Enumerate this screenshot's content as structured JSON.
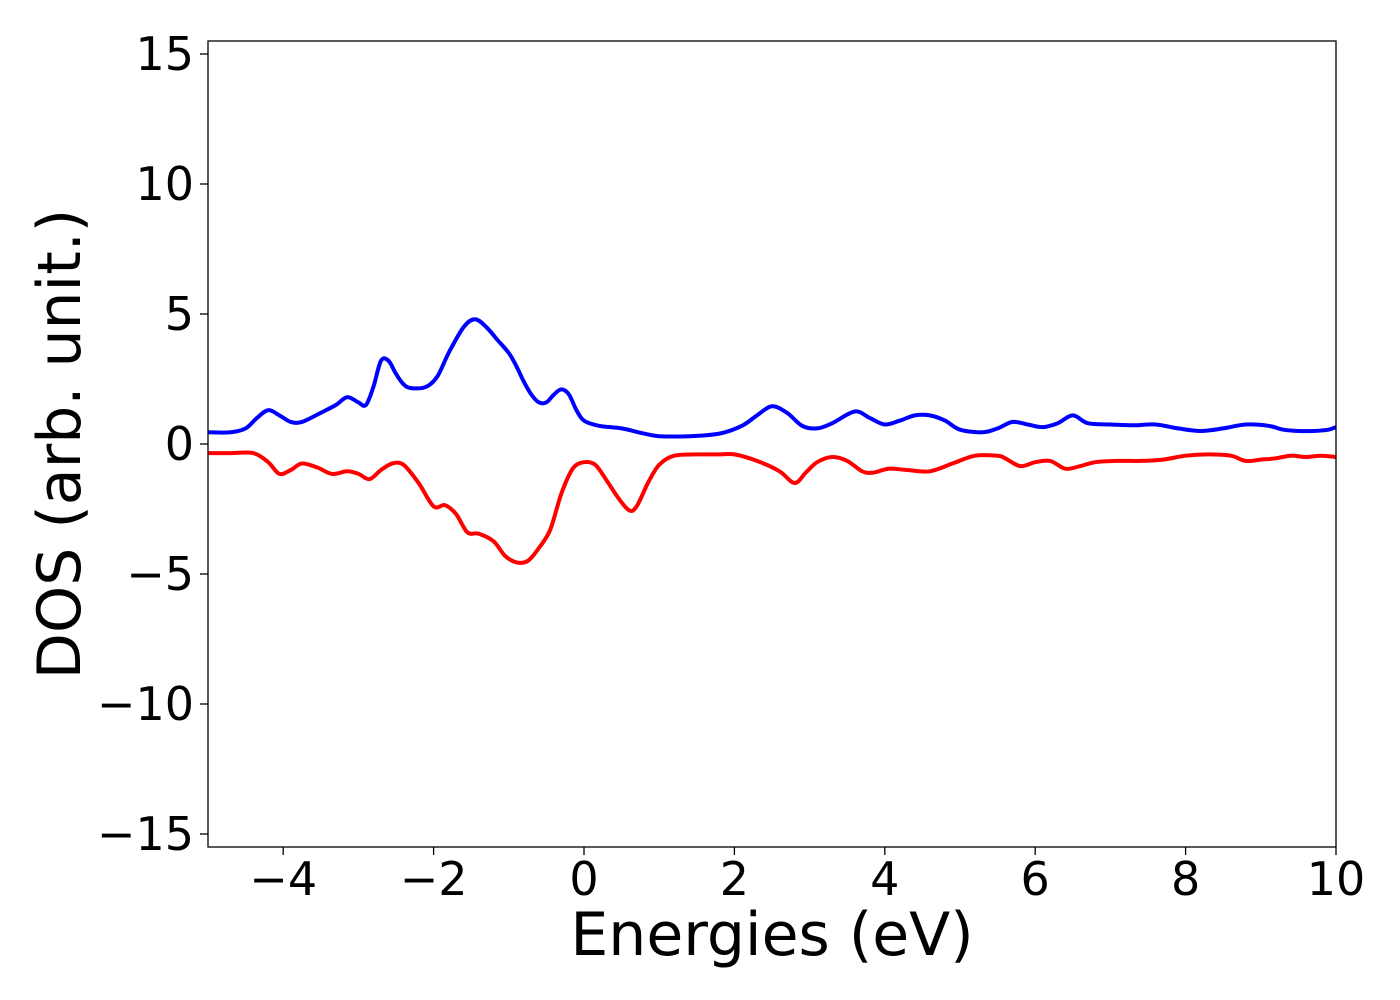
{
  "chart_data": {
    "type": "line",
    "xlabel": "Energies (eV)",
    "ylabel": "DOS (arb. unit.)",
    "xlim": [
      -5,
      10
    ],
    "ylim": [
      -15.5,
      15.5
    ],
    "xticks": [
      -4,
      -2,
      0,
      2,
      4,
      6,
      8,
      10
    ],
    "xtick_labels": [
      "−4",
      "−2",
      "0",
      "2",
      "4",
      "6",
      "8",
      "10"
    ],
    "yticks": [
      -15,
      -10,
      -5,
      0,
      5,
      10,
      15
    ],
    "ytick_labels": [
      "−15",
      "−10",
      "−5",
      "0",
      "5",
      "10",
      "15"
    ],
    "grid": false,
    "legend": "none",
    "series": [
      {
        "color": "#0000ff",
        "x": [
          -5.0,
          -4.7,
          -4.5,
          -4.35,
          -4.2,
          -4.05,
          -3.9,
          -3.75,
          -3.5,
          -3.3,
          -3.15,
          -3.0,
          -2.9,
          -2.8,
          -2.7,
          -2.6,
          -2.5,
          -2.4,
          -2.3,
          -2.1,
          -1.95,
          -1.8,
          -1.6,
          -1.45,
          -1.3,
          -1.15,
          -1.0,
          -0.9,
          -0.8,
          -0.7,
          -0.6,
          -0.5,
          -0.4,
          -0.3,
          -0.2,
          -0.1,
          0.0,
          0.2,
          0.5,
          0.8,
          1.0,
          1.4,
          1.8,
          2.1,
          2.3,
          2.5,
          2.7,
          2.9,
          3.1,
          3.3,
          3.6,
          3.8,
          4.0,
          4.2,
          4.4,
          4.6,
          4.8,
          5.0,
          5.3,
          5.5,
          5.7,
          5.9,
          6.1,
          6.3,
          6.5,
          6.7,
          7.0,
          7.3,
          7.6,
          7.9,
          8.2,
          8.5,
          8.8,
          9.1,
          9.3,
          9.5,
          9.7,
          9.9,
          10.0
        ],
        "y": [
          0.45,
          0.45,
          0.6,
          1.0,
          1.3,
          1.1,
          0.85,
          0.85,
          1.2,
          1.5,
          1.8,
          1.6,
          1.5,
          2.2,
          3.2,
          3.2,
          2.7,
          2.3,
          2.15,
          2.2,
          2.6,
          3.5,
          4.5,
          4.8,
          4.5,
          4.0,
          3.5,
          3.0,
          2.4,
          1.9,
          1.6,
          1.6,
          1.9,
          2.1,
          1.9,
          1.3,
          0.9,
          0.7,
          0.6,
          0.4,
          0.3,
          0.3,
          0.4,
          0.7,
          1.1,
          1.45,
          1.2,
          0.7,
          0.6,
          0.8,
          1.25,
          1.0,
          0.75,
          0.9,
          1.1,
          1.1,
          0.9,
          0.55,
          0.45,
          0.6,
          0.85,
          0.75,
          0.65,
          0.8,
          1.1,
          0.8,
          0.75,
          0.72,
          0.75,
          0.6,
          0.5,
          0.6,
          0.75,
          0.7,
          0.55,
          0.5,
          0.5,
          0.55,
          0.65
        ]
      },
      {
        "color": "#ff0000",
        "x": [
          -5.0,
          -4.7,
          -4.4,
          -4.2,
          -4.05,
          -3.9,
          -3.75,
          -3.55,
          -3.35,
          -3.15,
          -3.0,
          -2.85,
          -2.7,
          -2.55,
          -2.4,
          -2.2,
          -2.0,
          -1.85,
          -1.7,
          -1.55,
          -1.4,
          -1.2,
          -1.05,
          -0.9,
          -0.75,
          -0.6,
          -0.45,
          -0.3,
          -0.15,
          0.0,
          0.15,
          0.3,
          0.45,
          0.6,
          0.7,
          0.85,
          1.0,
          1.2,
          1.5,
          1.8,
          2.0,
          2.3,
          2.6,
          2.8,
          2.95,
          3.1,
          3.3,
          3.5,
          3.7,
          3.85,
          4.05,
          4.3,
          4.6,
          4.9,
          5.2,
          5.5,
          5.6,
          5.8,
          6.0,
          6.2,
          6.4,
          6.6,
          6.8,
          7.1,
          7.4,
          7.7,
          8.0,
          8.3,
          8.6,
          8.8,
          9.0,
          9.2,
          9.4,
          9.6,
          9.8,
          10.0
        ],
        "y": [
          -0.35,
          -0.35,
          -0.35,
          -0.7,
          -1.15,
          -1.0,
          -0.75,
          -0.9,
          -1.15,
          -1.05,
          -1.15,
          -1.35,
          -1.0,
          -0.75,
          -0.8,
          -1.5,
          -2.4,
          -2.35,
          -2.7,
          -3.4,
          -3.45,
          -3.75,
          -4.3,
          -4.55,
          -4.5,
          -4.0,
          -3.3,
          -1.9,
          -0.95,
          -0.7,
          -0.8,
          -1.4,
          -2.05,
          -2.55,
          -2.4,
          -1.5,
          -0.8,
          -0.45,
          -0.4,
          -0.4,
          -0.4,
          -0.65,
          -1.05,
          -1.5,
          -1.1,
          -0.7,
          -0.5,
          -0.65,
          -1.05,
          -1.1,
          -0.95,
          -1.0,
          -1.05,
          -0.75,
          -0.45,
          -0.45,
          -0.55,
          -0.85,
          -0.7,
          -0.65,
          -0.95,
          -0.85,
          -0.7,
          -0.65,
          -0.65,
          -0.6,
          -0.45,
          -0.4,
          -0.45,
          -0.65,
          -0.6,
          -0.55,
          -0.45,
          -0.5,
          -0.45,
          -0.5
        ]
      }
    ]
  }
}
